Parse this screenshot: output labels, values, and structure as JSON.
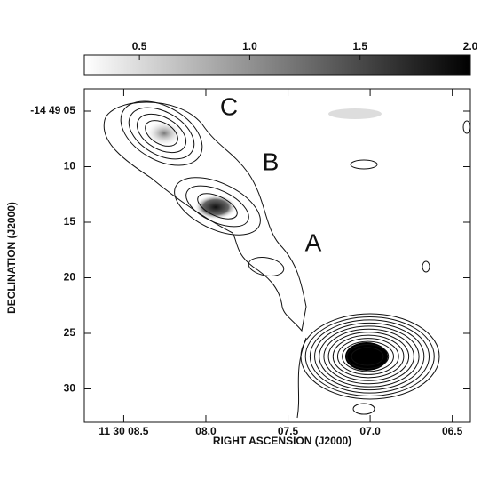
{
  "chart_data": {
    "type": "contour",
    "x_label": "RIGHT ASCENSION (J2000)",
    "y_label": "DECLINATION (J2000)",
    "annotations": [
      "C",
      "B",
      "A"
    ],
    "xlim": [
      8.74,
      6.39
    ],
    "xticks": [
      {
        "value": 8.5,
        "label": "11 30 08.5"
      },
      {
        "value": 8,
        "label": "08.0"
      },
      {
        "value": 7.5,
        "label": "07.5"
      },
      {
        "value": 7,
        "label": "07.0"
      },
      {
        "value": 6.5,
        "label": "06.5"
      }
    ],
    "ylim": [
      33,
      3
    ],
    "yticks": [
      {
        "value": 5,
        "label": "-14 49 05"
      },
      10,
      15,
      20,
      25,
      30
    ],
    "colorbar": {
      "lim": [
        0.25,
        2
      ],
      "ticks": [
        0.5,
        {
          "value": 1,
          "label": "1.0"
        },
        1.5,
        {
          "value": 2,
          "label": "2.0"
        }
      ]
    }
  }
}
